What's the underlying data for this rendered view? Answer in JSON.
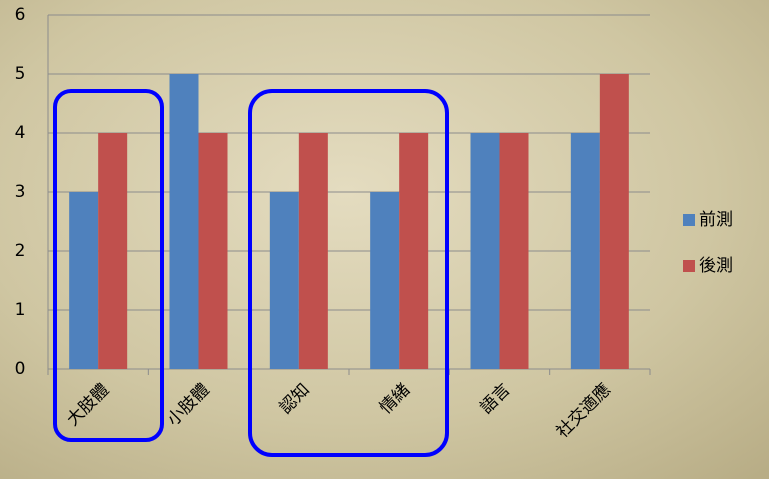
{
  "chart_data": {
    "type": "bar",
    "categories": [
      "大肢體",
      "小肢體",
      "認知",
      "情緒",
      "語言",
      "社交適應"
    ],
    "series": [
      {
        "name": "前測",
        "color": "#4f81bd",
        "values": [
          3,
          5,
          3,
          3,
          4,
          4
        ]
      },
      {
        "name": "後測",
        "color": "#c0504d",
        "values": [
          4,
          4,
          4,
          4,
          4,
          5
        ]
      }
    ],
    "ylim": [
      0,
      6
    ],
    "yticks": [
      0,
      1,
      2,
      3,
      4,
      5,
      6
    ],
    "grid": true,
    "legend": "right"
  }
}
